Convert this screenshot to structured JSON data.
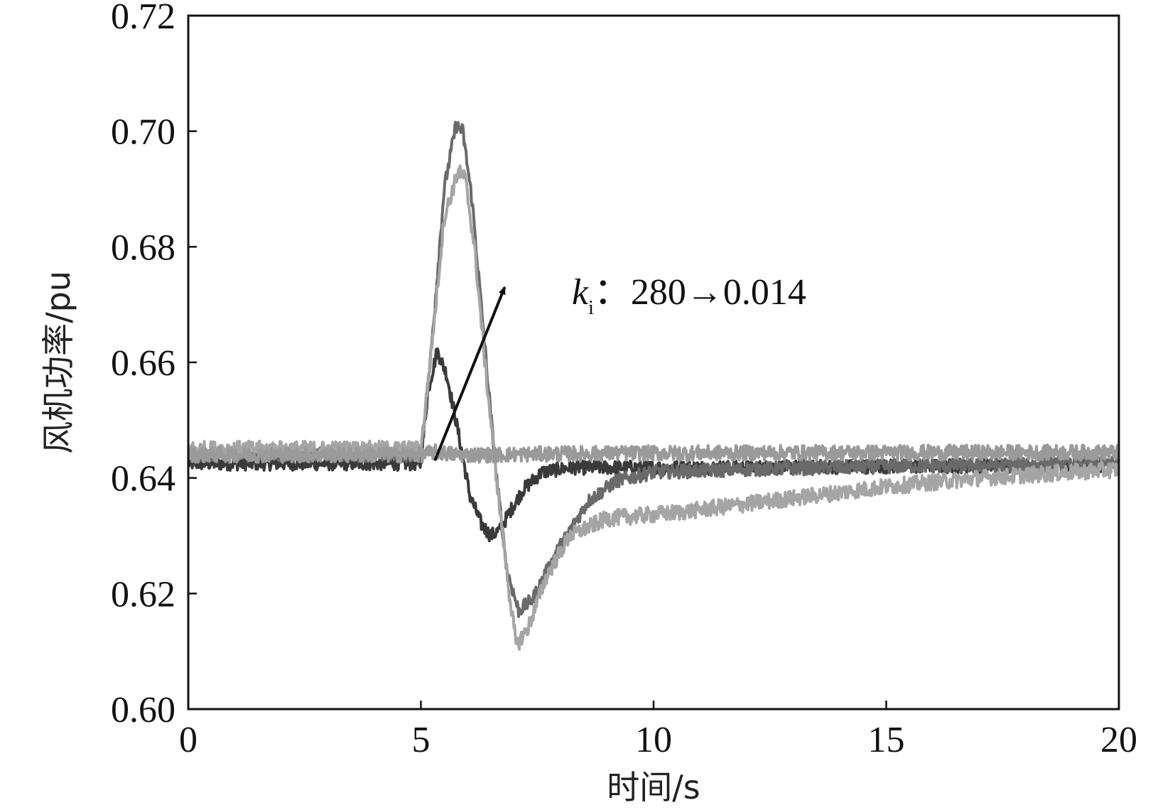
{
  "chart_data": {
    "type": "line",
    "xlabel": "时间/s",
    "ylabel": "风机功率/pu",
    "xlim": [
      0,
      20
    ],
    "ylim": [
      0.6,
      0.72
    ],
    "xticks": [
      0,
      5,
      10,
      15,
      20
    ],
    "yticks": [
      0.6,
      0.62,
      0.64,
      0.66,
      0.68,
      0.7,
      0.72
    ],
    "xtick_labels": [
      "0",
      "5",
      "10",
      "15",
      "20"
    ],
    "ytick_labels": [
      "0.60",
      "0.62",
      "0.64",
      "0.66",
      "0.68",
      "0.70",
      "0.72"
    ],
    "grid": false,
    "annotation": {
      "symbol": "k",
      "subscript": "i",
      "text": "：280→0.014",
      "arrow_from": [
        5.3,
        0.643
      ],
      "arrow_to": [
        6.8,
        0.673
      ]
    },
    "series": [
      {
        "color": "#3a3a3a",
        "noise": 0.0012,
        "x": [
          0,
          5.0,
          5.15,
          5.35,
          5.55,
          5.8,
          6.05,
          6.3,
          6.5,
          6.7,
          6.9,
          7.2,
          7.6,
          8.2,
          9.0,
          10,
          12,
          15,
          20
        ],
        "y": [
          0.6425,
          0.6425,
          0.655,
          0.662,
          0.658,
          0.648,
          0.637,
          0.632,
          0.63,
          0.631,
          0.634,
          0.638,
          0.641,
          0.6418,
          0.6418,
          0.6418,
          0.6418,
          0.642,
          0.6422
        ]
      },
      {
        "color": "#6a6a6a",
        "noise": 0.0012,
        "x": [
          0,
          5.0,
          5.2,
          5.5,
          5.75,
          5.9,
          6.1,
          6.35,
          6.6,
          6.85,
          7.1,
          7.4,
          7.9,
          8.6,
          9.2,
          10.0,
          12,
          15,
          20
        ],
        "y": [
          0.644,
          0.644,
          0.66,
          0.69,
          0.701,
          0.7,
          0.688,
          0.665,
          0.642,
          0.624,
          0.617,
          0.619,
          0.627,
          0.636,
          0.6395,
          0.641,
          0.6415,
          0.642,
          0.6425
        ]
      },
      {
        "color": "#a5a5a5",
        "noise": 0.0014,
        "x": [
          0,
          5.0,
          5.2,
          5.5,
          5.8,
          5.95,
          6.15,
          6.4,
          6.65,
          6.9,
          7.05,
          7.3,
          7.7,
          8.2,
          9.0,
          10.5,
          12,
          13.5,
          15,
          17,
          20
        ],
        "y": [
          0.645,
          0.645,
          0.66,
          0.685,
          0.693,
          0.692,
          0.68,
          0.658,
          0.638,
          0.62,
          0.611,
          0.614,
          0.623,
          0.63,
          0.633,
          0.634,
          0.6355,
          0.637,
          0.6385,
          0.64,
          0.6415
        ]
      },
      {
        "color": "#9a9a9a",
        "noise": 0.0013,
        "x": [
          0,
          5.0,
          5.3,
          5.8,
          6.5,
          8,
          10,
          15,
          20
        ],
        "y": [
          0.644,
          0.644,
          0.6445,
          0.644,
          0.644,
          0.6442,
          0.6443,
          0.6444,
          0.6444
        ]
      }
    ]
  }
}
